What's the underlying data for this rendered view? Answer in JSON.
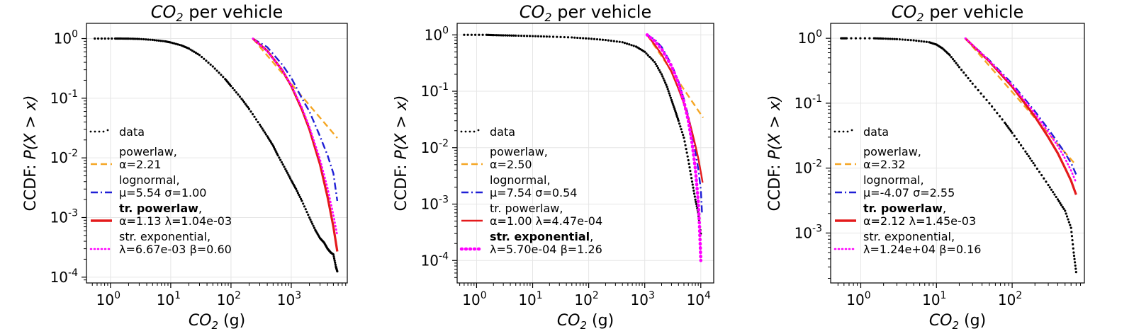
{
  "chart_data": [
    {
      "type": "line",
      "title_var": "CO",
      "title_sub": "2",
      "title_rest": " per vehicle",
      "xlabel_var": "CO",
      "xlabel_sub": "2",
      "xlabel_rest": " (g)",
      "ylabel_pre": "CCDF: ",
      "ylabel_math": "P(X > x)",
      "x_log": true,
      "y_log": true,
      "xlim": [
        0.4,
        8500
      ],
      "ylim": [
        8e-05,
        1.8
      ],
      "xticks": [
        {
          "base": "10",
          "exp": "0",
          "value": 1
        },
        {
          "base": "10",
          "exp": "1",
          "value": 10
        },
        {
          "base": "10",
          "exp": "2",
          "value": 100
        },
        {
          "base": "10",
          "exp": "3",
          "value": 1000
        }
      ],
      "yticks": [
        {
          "base": "10",
          "exp": "0",
          "value": 1
        },
        {
          "base": "10",
          "exp": "-1",
          "value": 0.1
        },
        {
          "base": "10",
          "exp": "-2",
          "value": 0.01
        },
        {
          "base": "10",
          "exp": "-3",
          "value": 0.001
        },
        {
          "base": "10",
          "exp": "-4",
          "value": 0.0001
        }
      ],
      "grid": true,
      "legend_position": "center-left",
      "series": [
        {
          "name": "data",
          "style": "dots",
          "color": "#000000",
          "x": [
            0.55,
            1.2,
            1.5,
            2,
            3,
            5,
            8,
            10,
            15,
            20,
            30,
            50,
            80,
            100,
            150,
            200,
            300,
            400,
            500,
            600,
            800,
            1000,
            1200,
            1500,
            2000,
            2500,
            3000,
            3500,
            4000,
            4500,
            5000,
            5500,
            5800
          ],
          "y": [
            1.0,
            1.0,
            1.0,
            0.997,
            0.985,
            0.95,
            0.9,
            0.86,
            0.77,
            0.68,
            0.53,
            0.34,
            0.21,
            0.16,
            0.098,
            0.066,
            0.036,
            0.023,
            0.016,
            0.011,
            0.0065,
            0.0042,
            0.003,
            0.0019,
            0.001,
            0.00062,
            0.00045,
            0.00038,
            0.0003,
            0.00026,
            0.00024,
            0.00015,
            0.000125
          ]
        },
        {
          "name": "powerlaw",
          "label": "α=2.21",
          "style": "dashed",
          "color": "#f5a623",
          "x": [
            230,
            5800
          ],
          "y": [
            1.0,
            0.0215
          ]
        },
        {
          "name": "lognormal",
          "label": "μ=5.54 σ=1.00",
          "style": "dashdot",
          "color": "#1f1fd6",
          "x": [
            230,
            400,
            700,
            1000,
            1500,
            2000,
            3000,
            4000,
            5000,
            5800
          ],
          "y": [
            1.0,
            0.72,
            0.37,
            0.22,
            0.1,
            0.06,
            0.023,
            0.011,
            0.0055,
            0.0019
          ]
        },
        {
          "name": "tr. powerlaw",
          "label": "α=1.13 λ=1.04e-03",
          "bold": true,
          "style": "solid",
          "color": "#e41a1c",
          "x": [
            230,
            400,
            700,
            1000,
            1500,
            2000,
            3000,
            4000,
            5000,
            5800
          ],
          "y": [
            1.0,
            0.62,
            0.3,
            0.16,
            0.065,
            0.03,
            0.0078,
            0.0022,
            0.0007,
            0.00027
          ]
        },
        {
          "name": "str. exponential",
          "label": "λ=6.67e-03 β=0.60",
          "style": "dotted",
          "color": "#ff00ff",
          "x": [
            230,
            400,
            700,
            1000,
            1500,
            2000,
            3000,
            4000,
            5000,
            5800
          ],
          "y": [
            1.0,
            0.61,
            0.3,
            0.165,
            0.07,
            0.033,
            0.0095,
            0.0031,
            0.0011,
            0.0005
          ]
        }
      ]
    },
    {
      "type": "line",
      "title_var": "CO",
      "title_sub": "2",
      "title_rest": " per vehicle",
      "xlabel_var": "CO",
      "xlabel_sub": "2",
      "xlabel_rest": " (g)",
      "ylabel_pre": "CCDF: ",
      "ylabel_math": "P(X > x)",
      "x_log": true,
      "y_log": true,
      "xlim": [
        0.45,
        17000
      ],
      "ylim": [
        4e-05,
        1.6
      ],
      "xticks": [
        {
          "base": "10",
          "exp": "0",
          "value": 1
        },
        {
          "base": "10",
          "exp": "1",
          "value": 10
        },
        {
          "base": "10",
          "exp": "2",
          "value": 100
        },
        {
          "base": "10",
          "exp": "3",
          "value": 1000
        },
        {
          "base": "10",
          "exp": "4",
          "value": 10000
        }
      ],
      "yticks": [
        {
          "base": "10",
          "exp": "0",
          "value": 1
        },
        {
          "base": "10",
          "exp": "-1",
          "value": 0.1
        },
        {
          "base": "10",
          "exp": "-2",
          "value": 0.01
        },
        {
          "base": "10",
          "exp": "-3",
          "value": 0.001
        },
        {
          "base": "10",
          "exp": "-4",
          "value": 0.0001
        }
      ],
      "grid": true,
      "legend_position": "center-left",
      "series": [
        {
          "name": "data",
          "style": "dots",
          "color": "#000000",
          "x": [
            0.6,
            1.5,
            2,
            3,
            5,
            10,
            20,
            50,
            100,
            200,
            400,
            700,
            1000,
            1500,
            2000,
            2500,
            3000,
            3500,
            4000,
            5000,
            6000,
            7000,
            8000,
            9000,
            10000
          ],
          "y": [
            1.0,
            1.0,
            0.99,
            0.98,
            0.97,
            0.95,
            0.93,
            0.9,
            0.86,
            0.81,
            0.74,
            0.62,
            0.5,
            0.33,
            0.2,
            0.12,
            0.07,
            0.045,
            0.03,
            0.015,
            0.006,
            0.0025,
            0.0012,
            0.0007,
            0.0003
          ]
        },
        {
          "name": "powerlaw",
          "label": "α=2.50",
          "style": "dashed",
          "color": "#f5a623",
          "x": [
            1100,
            11000
          ],
          "y": [
            1.0,
            0.034
          ]
        },
        {
          "name": "lognormal",
          "label": "μ=7.54 σ=0.54",
          "style": "dashdot",
          "color": "#1f1fd6",
          "x": [
            1100,
            1500,
            2000,
            3000,
            4000,
            5000,
            6000,
            7000,
            8000,
            9000,
            10000,
            10500
          ],
          "y": [
            1.0,
            0.83,
            0.61,
            0.3,
            0.15,
            0.072,
            0.036,
            0.018,
            0.0085,
            0.0042,
            0.0018,
            0.0007
          ]
        },
        {
          "name": "tr. powerlaw",
          "label": "α=1.00 λ=4.47e-04",
          "style": "solid",
          "color": "#e41a1c",
          "x": [
            1100,
            1500,
            2000,
            3000,
            4000,
            5000,
            6000,
            7000,
            8000,
            9000,
            10000,
            10800
          ],
          "y": [
            1.0,
            0.67,
            0.45,
            0.22,
            0.11,
            0.06,
            0.034,
            0.019,
            0.011,
            0.0065,
            0.0037,
            0.0024
          ]
        },
        {
          "name": "str. exponential",
          "label": "λ=5.70e-04 β=1.26",
          "bold": true,
          "style": "dotted",
          "color": "#ff00ff",
          "x": [
            1100,
            1500,
            2000,
            3000,
            4000,
            5000,
            6000,
            7000,
            8000,
            9000,
            9500,
            10000
          ],
          "y": [
            1.0,
            0.78,
            0.56,
            0.28,
            0.14,
            0.065,
            0.03,
            0.012,
            0.0042,
            0.0011,
            0.0004,
            0.0001
          ]
        }
      ]
    },
    {
      "type": "line",
      "title_var": "CO",
      "title_sub": "2",
      "title_rest": " per vehicle",
      "xlabel_var": "CO",
      "xlabel_sub": "2",
      "xlabel_rest": " (g)",
      "ylabel_pre": "CCDF: ",
      "ylabel_math": "P(X > x)",
      "x_log": true,
      "y_log": true,
      "xlim": [
        0.4,
        900
      ],
      "ylim": [
        0.00017,
        1.7
      ],
      "xticks": [
        {
          "base": "10",
          "exp": "0",
          "value": 1
        },
        {
          "base": "10",
          "exp": "1",
          "value": 10
        },
        {
          "base": "10",
          "exp": "2",
          "value": 100
        }
      ],
      "yticks": [
        {
          "base": "10",
          "exp": "0",
          "value": 1
        },
        {
          "base": "10",
          "exp": "-1",
          "value": 0.1
        },
        {
          "base": "10",
          "exp": "-2",
          "value": 0.01
        },
        {
          "base": "10",
          "exp": "-3",
          "value": 0.001
        }
      ],
      "grid": true,
      "legend_position": "center-left",
      "series": [
        {
          "name": "data",
          "style": "dots",
          "color": "#000000",
          "x": [
            0.55,
            0.65,
            1.5,
            2,
            3,
            5,
            8,
            10,
            12,
            15,
            20,
            30,
            50,
            80,
            100,
            150,
            200,
            300,
            400,
            500,
            600,
            650,
            700
          ],
          "y": [
            1.0,
            1.0,
            1.0,
            0.99,
            0.97,
            0.93,
            0.87,
            0.8,
            0.7,
            0.55,
            0.36,
            0.2,
            0.1,
            0.05,
            0.035,
            0.018,
            0.011,
            0.0055,
            0.0033,
            0.0022,
            0.0012,
            0.0005,
            0.00025
          ]
        },
        {
          "name": "powerlaw",
          "label": "α=2.32",
          "style": "dashed",
          "color": "#f5a623",
          "x": [
            24,
            700
          ],
          "y": [
            1.0,
            0.0111
          ]
        },
        {
          "name": "lognormal",
          "label": "μ=-4.07 σ=2.55",
          "style": "dashdot",
          "color": "#1f1fd6",
          "x": [
            24,
            50,
            100,
            200,
            300,
            400,
            500,
            600,
            700
          ],
          "y": [
            1.0,
            0.46,
            0.2,
            0.075,
            0.04,
            0.025,
            0.017,
            0.012,
            0.008
          ]
        },
        {
          "name": "tr. powerlaw",
          "label": "α=2.12 λ=1.45e-03",
          "bold": true,
          "style": "solid",
          "color": "#e41a1c",
          "x": [
            24,
            50,
            100,
            200,
            300,
            400,
            500,
            600,
            700
          ],
          "y": [
            1.0,
            0.44,
            0.18,
            0.062,
            0.03,
            0.017,
            0.01,
            0.0064,
            0.0039
          ]
        },
        {
          "name": "str. exponential",
          "label": "λ=1.24e+04 β=0.16",
          "style": "dotted",
          "color": "#ff00ff",
          "x": [
            24,
            50,
            100,
            200,
            300,
            400,
            500,
            600,
            700
          ],
          "y": [
            1.0,
            0.45,
            0.19,
            0.07,
            0.036,
            0.022,
            0.014,
            0.0092,
            0.006
          ]
        }
      ]
    }
  ]
}
